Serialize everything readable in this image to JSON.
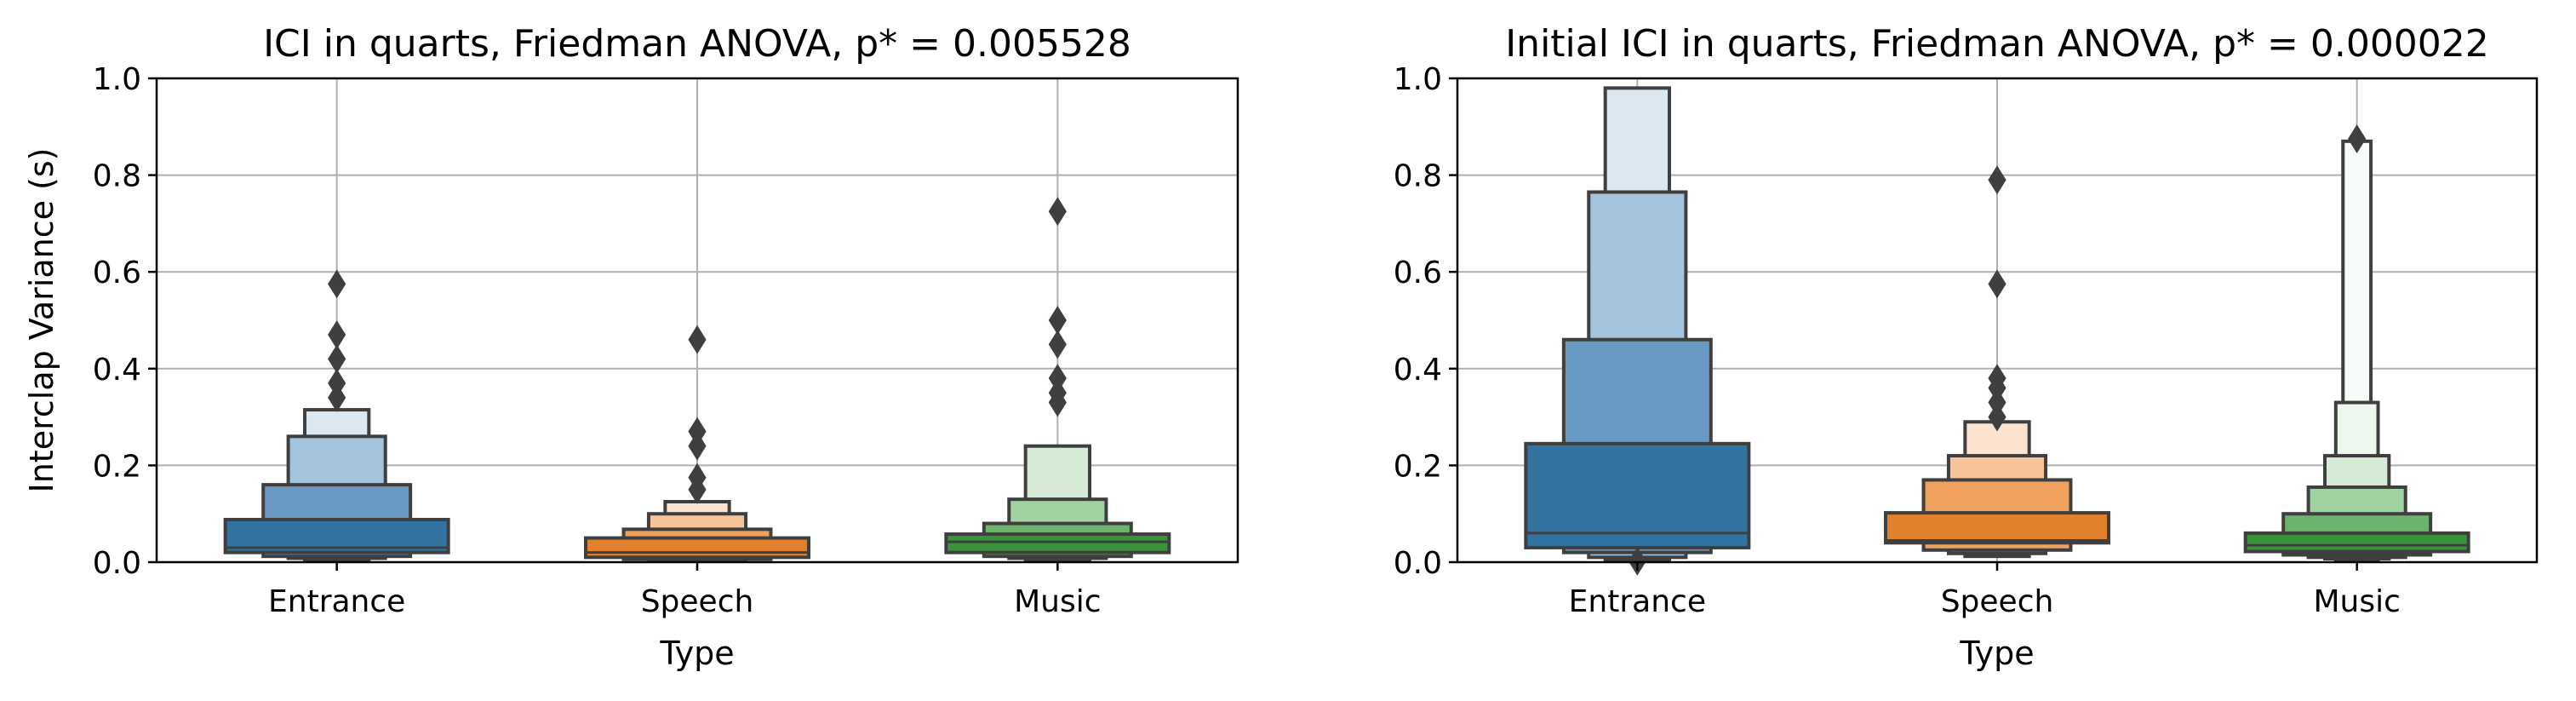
{
  "colors": {
    "grid": "#b0b0b0",
    "edge": "#3f3f3f",
    "axis": "#000000",
    "background": "#ffffff",
    "outlier": "#3f3f3f"
  },
  "chart_data": [
    {
      "type": "boxen",
      "title": "ICI in quarts, Friedman ANOVA, p* = 0.005528",
      "xlabel": "Type",
      "ylabel": "Interclap Variance (s)",
      "ylim": [
        0,
        1.0
      ],
      "yticks": [
        "0.0",
        "0.2",
        "0.4",
        "0.6",
        "0.8",
        "1.0"
      ],
      "grid": true,
      "categories": [
        "Entrance",
        "Speech",
        "Music"
      ],
      "series": [
        {
          "category": "Entrance",
          "color": "#1f77b4",
          "median": 0.03,
          "levels": [
            {
              "low": 0.02,
              "high": 0.088,
              "shade": "#3274a1"
            },
            {
              "low": 0.012,
              "high": 0.16,
              "shade": "#6a9ac4"
            },
            {
              "low": 0.008,
              "high": 0.26,
              "shade": "#a3c4dc"
            },
            {
              "low": 0.005,
              "high": 0.315,
              "shade": "#dbe8f2"
            }
          ],
          "outliers": [
            0.34,
            0.37,
            0.42,
            0.47,
            0.575
          ]
        },
        {
          "category": "Speech",
          "color": "#ff7f0e",
          "median": 0.02,
          "levels": [
            {
              "low": 0.01,
              "high": 0.05,
              "shade": "#e1812c"
            },
            {
              "low": 0.006,
              "high": 0.068,
              "shade": "#f0a15e"
            },
            {
              "low": 0.004,
              "high": 0.1,
              "shade": "#f7c398"
            },
            {
              "low": 0.002,
              "high": 0.125,
              "shade": "#fce3cf"
            }
          ],
          "outliers": [
            0.15,
            0.175,
            0.24,
            0.27,
            0.46
          ]
        },
        {
          "category": "Music",
          "color": "#2ca02c",
          "median": 0.042,
          "levels": [
            {
              "low": 0.02,
              "high": 0.058,
              "shade": "#3a923a"
            },
            {
              "low": 0.012,
              "high": 0.08,
              "shade": "#6cb46c"
            },
            {
              "low": 0.008,
              "high": 0.13,
              "shade": "#a1d2a1"
            },
            {
              "low": 0.005,
              "high": 0.24,
              "shade": "#d5ebd5"
            }
          ],
          "outliers": [
            0.33,
            0.35,
            0.38,
            0.45,
            0.5,
            0.725
          ]
        }
      ]
    },
    {
      "type": "boxen",
      "title": "Initial ICI in quarts, Friedman ANOVA, p* = 0.000022",
      "xlabel": "Type",
      "ylabel": "",
      "ylim": [
        0,
        1.0
      ],
      "yticks": [
        "0.0",
        "0.2",
        "0.4",
        "0.6",
        "0.8",
        "1.0"
      ],
      "grid": true,
      "categories": [
        "Entrance",
        "Speech",
        "Music"
      ],
      "series": [
        {
          "category": "Entrance",
          "color": "#1f77b4",
          "median": 0.06,
          "levels": [
            {
              "low": 0.03,
              "high": 0.245,
              "shade": "#3274a1"
            },
            {
              "low": 0.02,
              "high": 0.46,
              "shade": "#6a9ac4"
            },
            {
              "low": 0.01,
              "high": 0.765,
              "shade": "#a3c4dc"
            },
            {
              "low": 0.005,
              "high": 0.98,
              "shade": "#dbe8f2"
            }
          ],
          "outliers": [
            0.002
          ]
        },
        {
          "category": "Speech",
          "color": "#ff7f0e",
          "median": 0.045,
          "levels": [
            {
              "low": 0.04,
              "high": 0.102,
              "shade": "#e1812c"
            },
            {
              "low": 0.025,
              "high": 0.17,
              "shade": "#f0a15e"
            },
            {
              "low": 0.018,
              "high": 0.22,
              "shade": "#f7c398"
            },
            {
              "low": 0.012,
              "high": 0.29,
              "shade": "#fce3cf"
            }
          ],
          "outliers": [
            0.3,
            0.33,
            0.36,
            0.38,
            0.575,
            0.79
          ]
        },
        {
          "category": "Music",
          "color": "#2ca02c",
          "median": 0.035,
          "levels": [
            {
              "low": 0.022,
              "high": 0.06,
              "shade": "#3a923a"
            },
            {
              "low": 0.015,
              "high": 0.1,
              "shade": "#6cb46c"
            },
            {
              "low": 0.01,
              "high": 0.155,
              "shade": "#a1d2a1"
            },
            {
              "low": 0.007,
              "high": 0.22,
              "shade": "#d5ebd5"
            },
            {
              "low": 0.005,
              "high": 0.33,
              "shade": "#eef7ee"
            },
            {
              "low": 0.003,
              "high": 0.87,
              "shade": "#f7fbf7"
            }
          ],
          "outliers": [
            0.875
          ]
        }
      ]
    }
  ]
}
